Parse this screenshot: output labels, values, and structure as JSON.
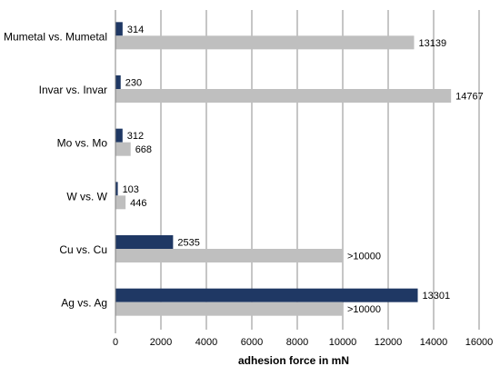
{
  "chart_data": {
    "type": "bar",
    "orientation": "horizontal",
    "xlabel": "adhesion force in mN",
    "xlim": [
      0,
      16000
    ],
    "xticks": [
      0,
      2000,
      4000,
      6000,
      8000,
      10000,
      12000,
      14000,
      16000
    ],
    "grid": "vertical",
    "categories": [
      "Mumetal vs. Mumetal",
      "Invar vs. Invar",
      "Mo vs. Mo",
      "W vs. W",
      "Cu vs. Cu",
      "Ag vs. Ag"
    ],
    "series": [
      {
        "color": "#1f3864",
        "values": [
          314,
          230,
          312,
          103,
          2535,
          13301
        ],
        "labels": [
          "314",
          "230",
          "312",
          "103",
          "2535",
          "13301"
        ]
      },
      {
        "color": "#bfbfbf",
        "values": [
          13139,
          14767,
          668,
          446,
          10000,
          10000
        ],
        "labels": [
          "13139",
          "14767",
          "668",
          "446",
          ">10000",
          ">10000"
        ]
      }
    ]
  }
}
